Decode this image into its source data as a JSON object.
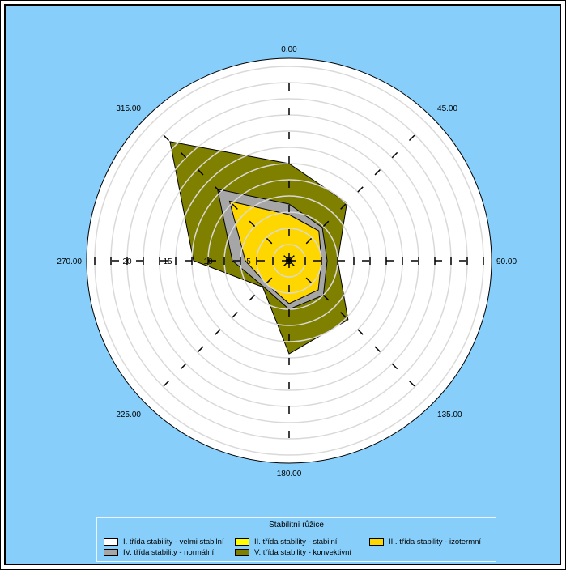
{
  "chart_data": {
    "type": "radar",
    "title": "Stabilitní růžice",
    "directions": [
      "0.00",
      "45.00",
      "90.00",
      "135.00",
      "180.00",
      "225.00",
      "270.00",
      "315.00"
    ],
    "direction_degrees": [
      0,
      45,
      90,
      135,
      180,
      225,
      270,
      315
    ],
    "radial_ticks": [
      "5",
      "10",
      "15",
      "20"
    ],
    "rlim": [
      0,
      24
    ],
    "grid": true,
    "legend_position": "bottom",
    "series": [
      {
        "name": "V. třída stability - konvektivní",
        "color": "#808000",
        "values": [
          12.0,
          10.1,
          6.0,
          10.3,
          11.5,
          4.6,
          11.8,
          20.8
        ]
      },
      {
        "name": "IV. třída stability - normální",
        "color": "#a6a6a6",
        "values": [
          7.0,
          5.8,
          4.7,
          6.0,
          6.0,
          4.5,
          7.0,
          12.5
        ]
      },
      {
        "name": "III. třída stability - izotermní",
        "color": "#ffd700",
        "values": [
          5.7,
          5.2,
          4.0,
          5.1,
          5.3,
          4.0,
          5.4,
          10.4
        ]
      },
      {
        "name": "II. třída stability - stabilní",
        "color": "#ffff00",
        "values": [
          0.4,
          0.4,
          0.4,
          0.4,
          0.4,
          0.4,
          0.4,
          0.4
        ]
      },
      {
        "name": "I. třída stability - velmi stabilní",
        "color": "#ffffff",
        "values": [
          0.1,
          0.1,
          0.1,
          0.1,
          0.1,
          0.1,
          0.1,
          0.1
        ]
      }
    ]
  },
  "legend": {
    "title": "Stabilitní růžice",
    "items": [
      {
        "label": "I. třída stability - velmi stabilní",
        "color": "#ffffff"
      },
      {
        "label": "II. třída stability - stabilní",
        "color": "#ffff00"
      },
      {
        "label": "III. třída stability - izotermní",
        "color": "#ffd700"
      },
      {
        "label": "IV. třída stability - normální",
        "color": "#a6a6a6"
      },
      {
        "label": "V. třída stability - konvektivní",
        "color": "#808000"
      }
    ]
  },
  "colors": {
    "background": "#87cefa",
    "plot_area": "#ffffff",
    "grid": "#d9d9d9"
  }
}
